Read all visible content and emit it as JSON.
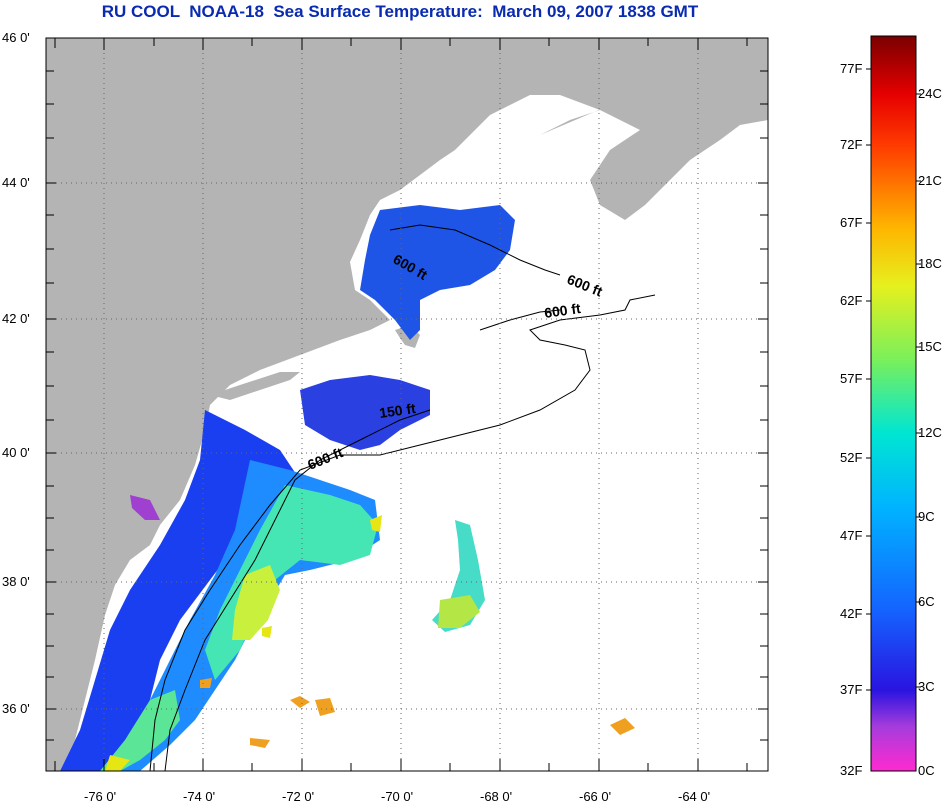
{
  "title": "RU COOL  NOAA-18  Sea Surface Temperature:  March 09, 2007 1838 GMT",
  "map": {
    "lat_ticks": [
      "46 0'",
      "44 0'",
      "42 0'",
      "40 0'",
      "38 0'",
      "36 0'"
    ],
    "lon_ticks": [
      "-76 0'",
      "-74 0'",
      "-72 0'",
      "-70 0'",
      "-68 0'",
      "-66 0'",
      "-64 0'"
    ],
    "contour_labels": [
      "600 ft",
      "600 ft",
      "600 ft",
      "150 ft",
      "600 ft"
    ],
    "colors": {
      "land": "#b4b4b4",
      "no_data": "#ffffff"
    }
  },
  "colorbar": {
    "f_labels": [
      "77F",
      "72F",
      "67F",
      "62F",
      "57F",
      "52F",
      "47F",
      "42F",
      "37F",
      "32F"
    ],
    "c_labels": [
      "24C",
      "21C",
      "18C",
      "15C",
      "12C",
      "9C",
      "6C",
      "3C",
      "0C"
    ],
    "stops": [
      "#ff2ad0",
      "#8a2be2",
      "#1414e6",
      "#1e64ff",
      "#00c8ff",
      "#28e6a0",
      "#c8f03c",
      "#ffeb00",
      "#ff9600",
      "#ff1e00",
      "#7a0000"
    ]
  }
}
